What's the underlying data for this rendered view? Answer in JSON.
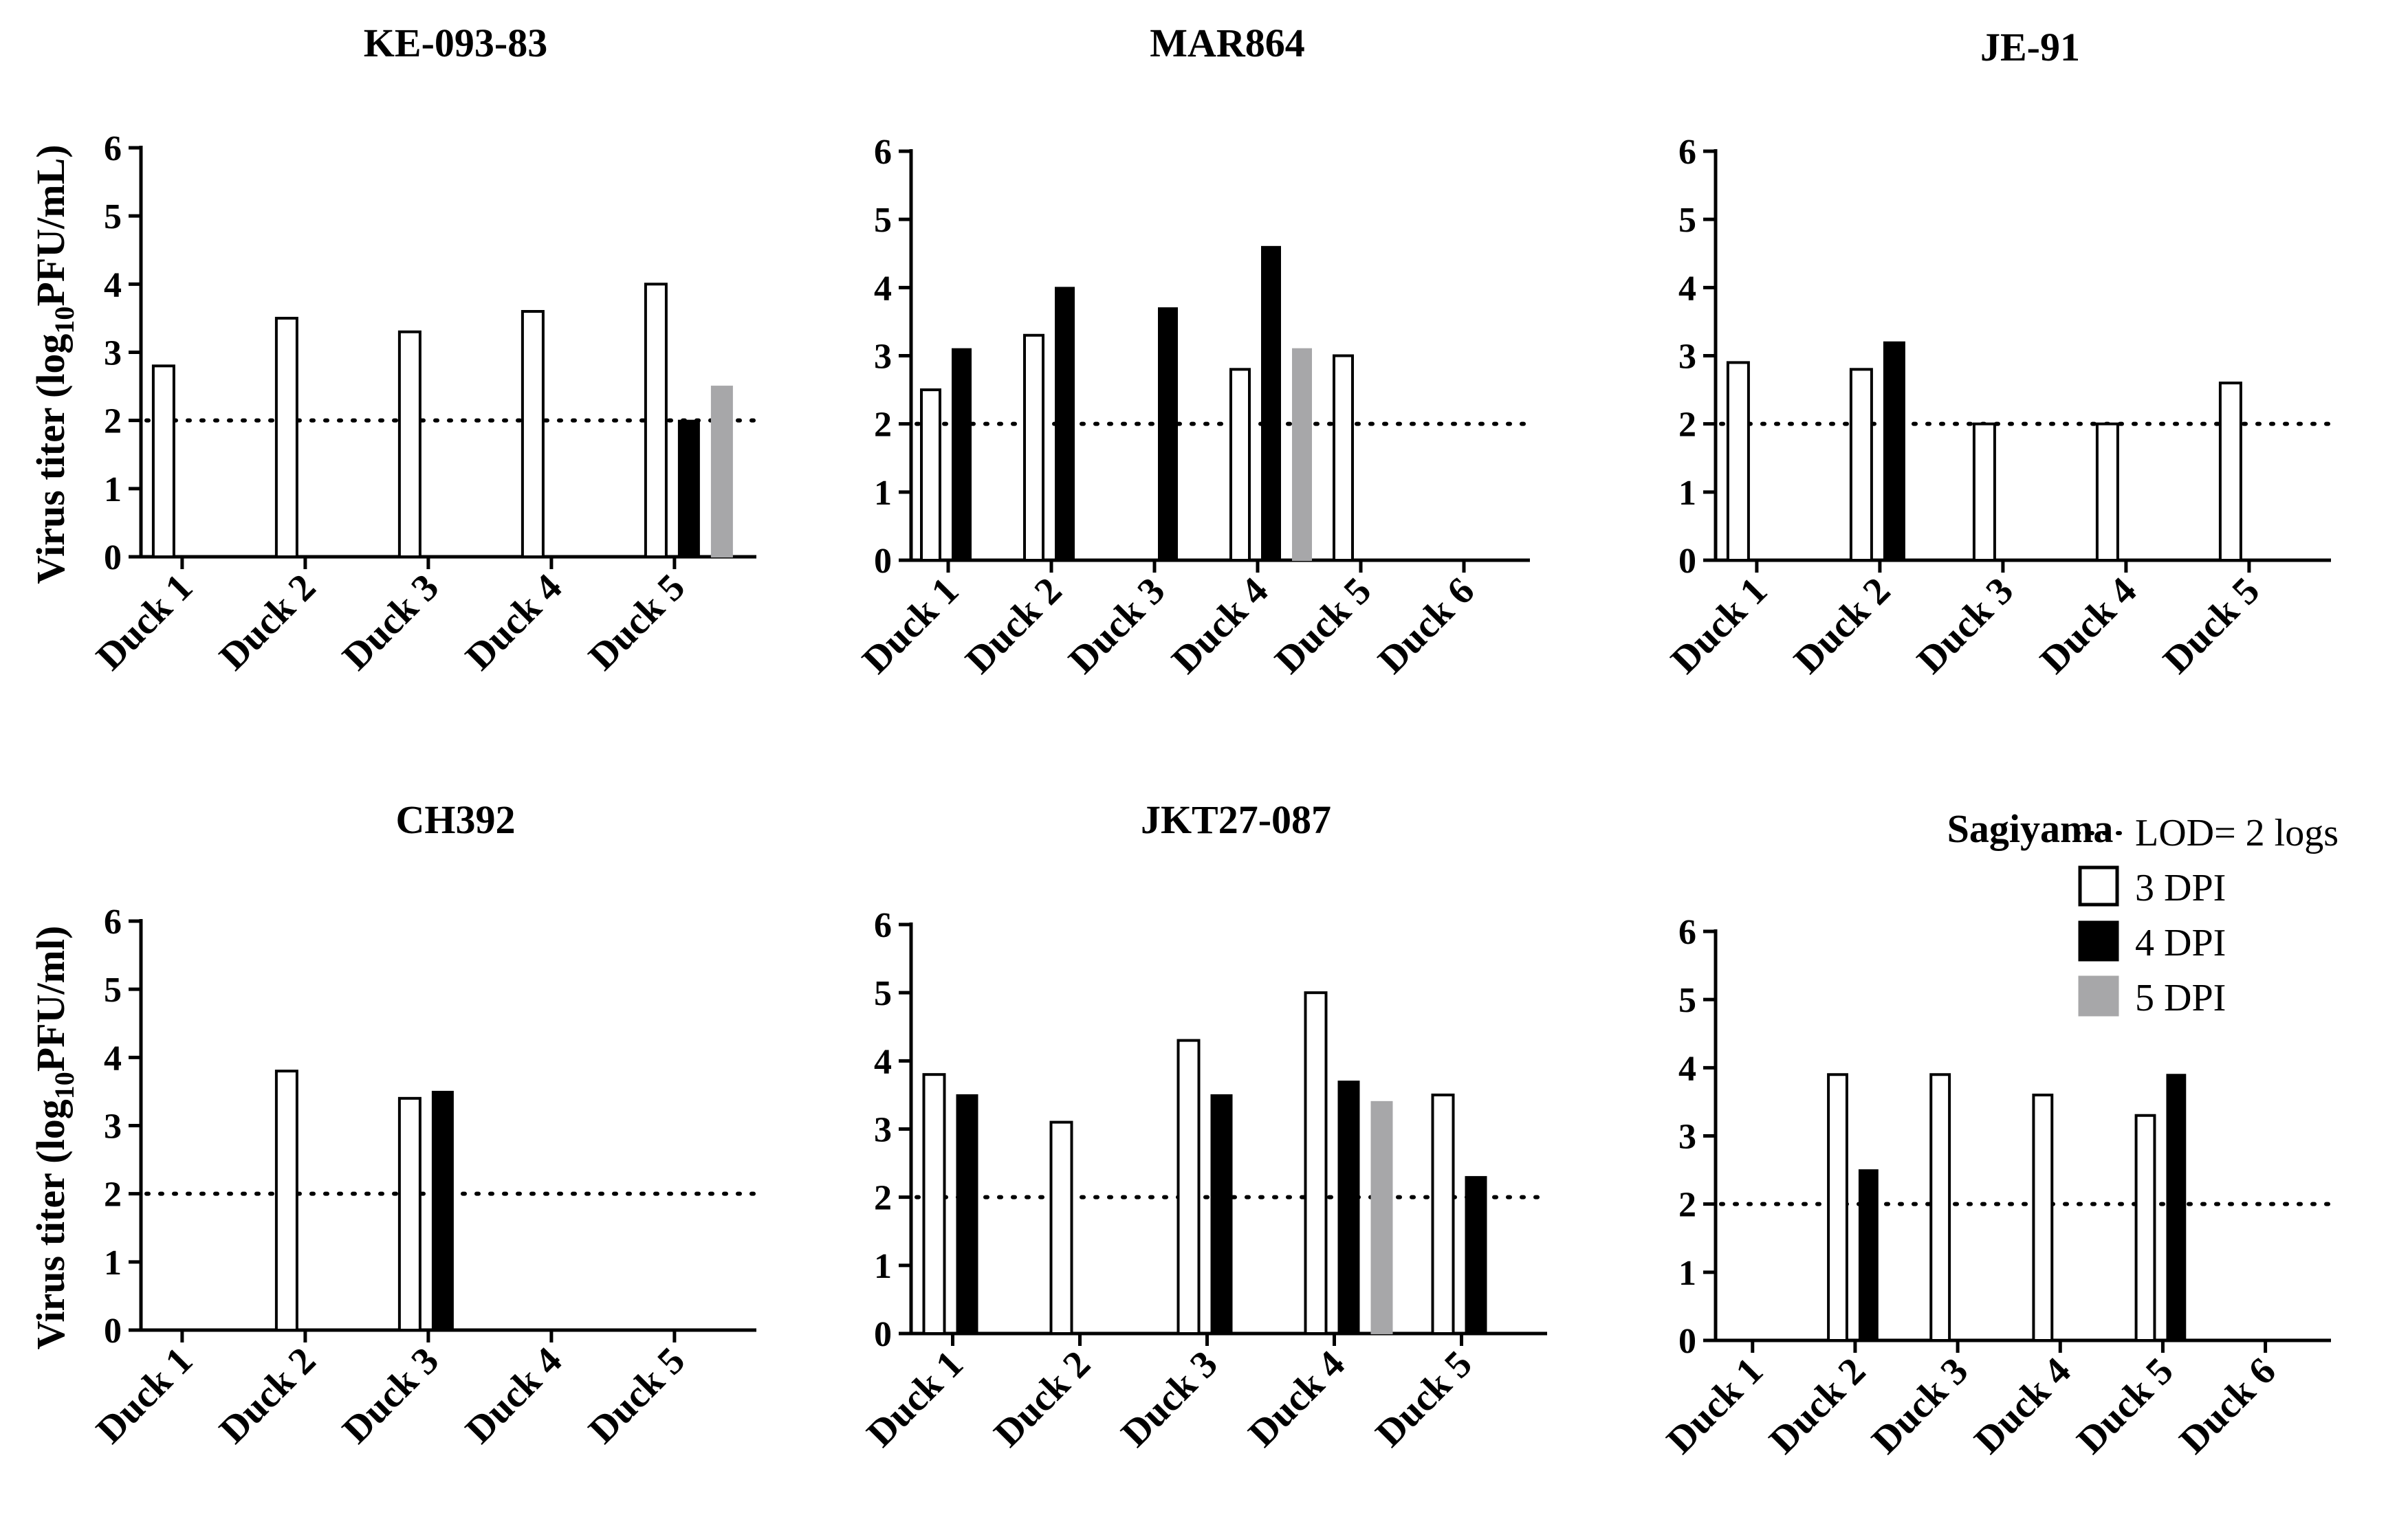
{
  "chart_data": [
    {
      "type": "bar",
      "title": "KE-093-83",
      "ylabel": "Virus titer (log10PFU/mL)",
      "ylim": [
        0,
        6
      ],
      "yticks": [
        "0",
        "1",
        "2",
        "3",
        "4",
        "5",
        "6"
      ],
      "lod": 2,
      "categories": [
        "Duck 1",
        "Duck 2",
        "Duck 3",
        "Duck 4",
        "Duck 5"
      ],
      "series": [
        {
          "name": "3 DPI",
          "values": [
            2.8,
            3.5,
            3.3,
            3.6,
            4.0
          ]
        },
        {
          "name": "4 DPI",
          "values": [
            null,
            null,
            null,
            null,
            2.0
          ]
        },
        {
          "name": "5 DPI",
          "values": [
            null,
            null,
            null,
            null,
            2.5
          ]
        }
      ]
    },
    {
      "type": "bar",
      "title": "MAR864",
      "ylim": [
        0,
        6
      ],
      "yticks": [
        "0",
        "1",
        "2",
        "3",
        "4",
        "5",
        "6"
      ],
      "lod": 2,
      "categories": [
        "Duck 1",
        "Duck 2",
        "Duck 3",
        "Duck 4",
        "Duck 5",
        "Duck 6"
      ],
      "series": [
        {
          "name": "3 DPI",
          "values": [
            2.5,
            3.3,
            null,
            2.8,
            3.0,
            null
          ]
        },
        {
          "name": "4 DPI",
          "values": [
            3.1,
            4.0,
            3.7,
            4.6,
            null,
            null
          ]
        },
        {
          "name": "5 DPI",
          "values": [
            null,
            null,
            null,
            3.1,
            null,
            null
          ]
        }
      ]
    },
    {
      "type": "bar",
      "title": "JE-91",
      "ylim": [
        0,
        6
      ],
      "yticks": [
        "0",
        "1",
        "2",
        "3",
        "4",
        "5",
        "6"
      ],
      "lod": 2,
      "categories": [
        "Duck 1",
        "Duck 2",
        "Duck 3",
        "Duck 4",
        "Duck 5"
      ],
      "series": [
        {
          "name": "3 DPI",
          "values": [
            2.9,
            2.8,
            2.0,
            2.0,
            2.6
          ]
        },
        {
          "name": "4 DPI",
          "values": [
            null,
            3.2,
            null,
            null,
            null
          ]
        },
        {
          "name": "5 DPI",
          "values": [
            null,
            null,
            null,
            null,
            null
          ]
        }
      ]
    },
    {
      "type": "bar",
      "title": "CH392",
      "ylabel": "Virus titer (log10PFU/ml)",
      "ylim": [
        0,
        6
      ],
      "yticks": [
        "0",
        "1",
        "2",
        "3",
        "4",
        "5",
        "6"
      ],
      "lod": 2,
      "categories": [
        "Duck 1",
        "Duck 2",
        "Duck 3",
        "Duck 4",
        "Duck 5"
      ],
      "series": [
        {
          "name": "3 DPI",
          "values": [
            null,
            3.8,
            3.4,
            null,
            null
          ]
        },
        {
          "name": "4 DPI",
          "values": [
            null,
            null,
            3.5,
            null,
            null
          ]
        },
        {
          "name": "5 DPI",
          "values": [
            null,
            null,
            null,
            null,
            null
          ]
        }
      ]
    },
    {
      "type": "bar",
      "title": "JKT27-087",
      "ylim": [
        0,
        6
      ],
      "yticks": [
        "0",
        "1",
        "2",
        "3",
        "4",
        "5",
        "6"
      ],
      "lod": 2,
      "categories": [
        "Duck 1",
        "Duck 2",
        "Duck 3",
        "Duck 4",
        "Duck 5"
      ],
      "series": [
        {
          "name": "3 DPI",
          "values": [
            3.8,
            3.1,
            4.3,
            5.0,
            3.5
          ]
        },
        {
          "name": "4 DPI",
          "values": [
            3.5,
            null,
            3.5,
            3.7,
            2.3
          ]
        },
        {
          "name": "5 DPI",
          "values": [
            null,
            null,
            null,
            3.4,
            null
          ]
        }
      ]
    },
    {
      "type": "bar",
      "title": "Sagiyama",
      "ylim": [
        0,
        6
      ],
      "yticks": [
        "0",
        "1",
        "2",
        "3",
        "4",
        "5",
        "6"
      ],
      "lod": 2,
      "categories": [
        "Duck 1",
        "Duck 2",
        "Duck 3",
        "Duck 4",
        "Duck 5",
        "Duck 6"
      ],
      "series": [
        {
          "name": "3 DPI",
          "values": [
            null,
            3.9,
            3.9,
            3.6,
            3.3,
            null
          ]
        },
        {
          "name": "4 DPI",
          "values": [
            null,
            2.5,
            null,
            null,
            3.9,
            null
          ]
        },
        {
          "name": "5 DPI",
          "values": [
            null,
            null,
            null,
            null,
            null,
            null
          ]
        }
      ]
    }
  ],
  "ylabel_parts": {
    "top_prefix": "Virus titer (log",
    "top_sub": "10",
    "top_suffix": "PFU/mL)",
    "bottom_prefix": "Virus titer (log",
    "bottom_sub": "10",
    "bottom_suffix": "PFU/ml)"
  },
  "legend": {
    "lod_label": "LOD= 2 logs",
    "items": [
      {
        "label": "3 DPI",
        "fill": "#ffffff",
        "stroke": "#000000"
      },
      {
        "label": "4 DPI",
        "fill": "#000000",
        "stroke": "#000000"
      },
      {
        "label": "5 DPI",
        "fill": "#a7a7a9",
        "stroke": "#a7a7a9"
      }
    ]
  },
  "colors": {
    "dpi3": "#ffffff",
    "dpi4": "#000000",
    "dpi5": "#a7a7a9",
    "axis": "#000000"
  }
}
